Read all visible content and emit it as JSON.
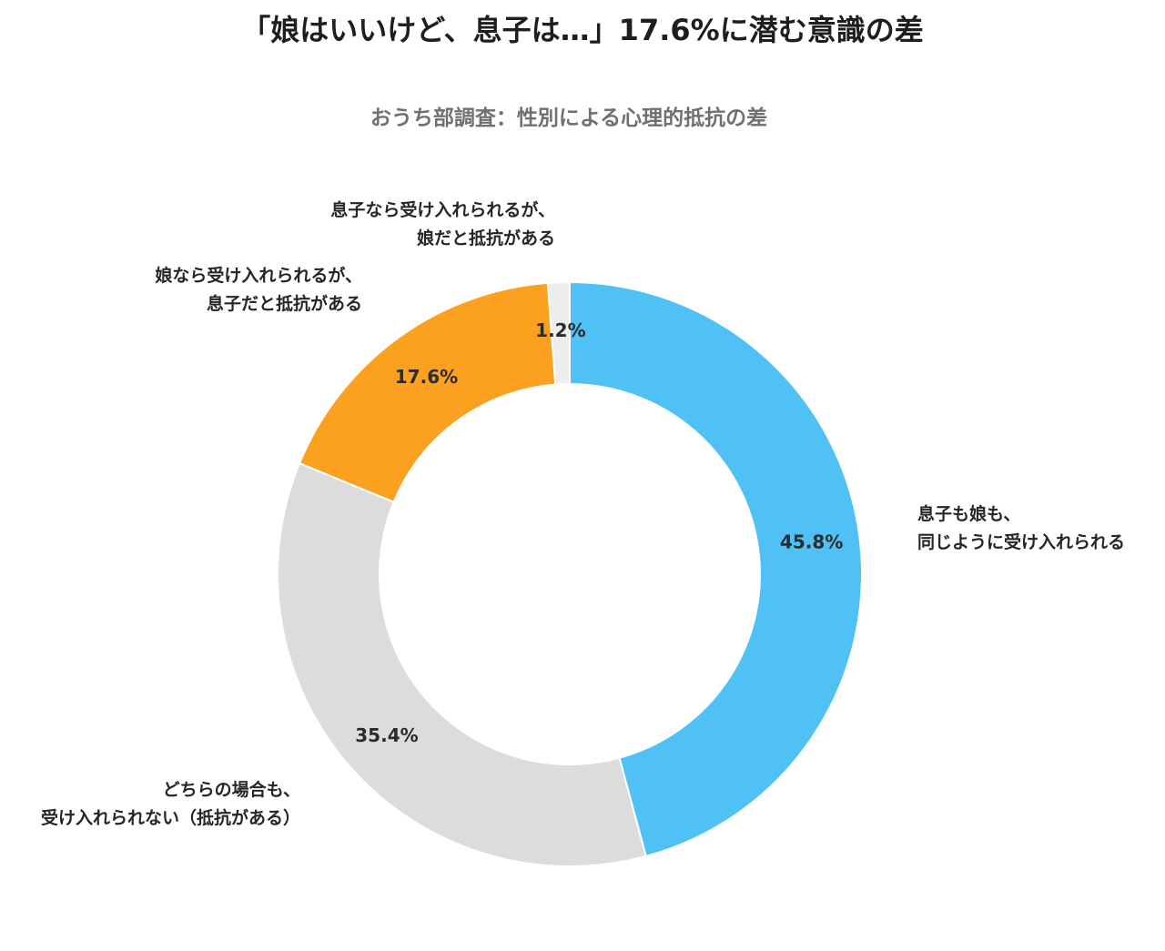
{
  "title": "「娘はいいけど、息子は…」17.6%に潜む意識の差",
  "subtitle": "おうち部調査：性別による心理的抵抗の差",
  "chart_data": {
    "type": "pie",
    "donut": true,
    "title": "「娘はいいけど、息子は…」17.6%に潜む意識の差",
    "subtitle": "おうち部調査：性別による心理的抵抗の差",
    "slices": [
      {
        "label_lines": [
          "息子も娘も、",
          "同じように受け入れられる"
        ],
        "value": 45.8,
        "value_label": "45.8%",
        "color": "#4fc1f5"
      },
      {
        "label_lines": [
          "どちらの場合も、",
          "受け入れられない（抵抗がある）"
        ],
        "value": 35.4,
        "value_label": "35.4%",
        "color": "#dcdcdc"
      },
      {
        "label_lines": [
          "娘なら受け入れられるが、",
          "息子だと抵抗がある"
        ],
        "value": 17.6,
        "value_label": "17.6%",
        "color": "#fca01f"
      },
      {
        "label_lines": [
          "息子なら受け入れられるが、",
          "娘だと抵抗がある"
        ],
        "value": 1.2,
        "value_label": "1.2%",
        "color": "#ededed"
      }
    ],
    "start_angle": "12 o'clock",
    "direction": "clockwise",
    "legend": "none"
  }
}
